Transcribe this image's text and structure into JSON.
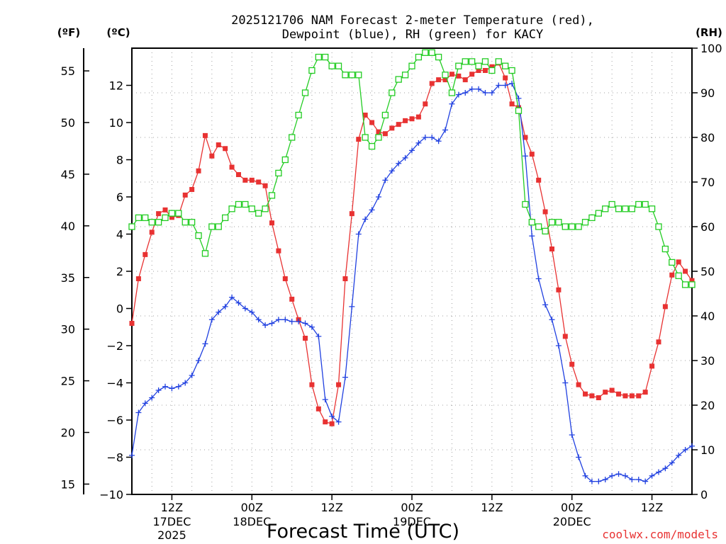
{
  "title_line1": "2025121706 NAM Forecast 2-meter Temperature (red),",
  "title_line2": "Dewpoint (blue), RH (green) for KACY",
  "unit_f": "(ºF)",
  "unit_c": "(ºC)",
  "unit_rh": "(RH)",
  "xlabel": "Forecast Time (UTC)",
  "watermark": "coolwx.com/models",
  "colors": {
    "temperature": "#e83232",
    "dewpoint": "#2040e0",
    "rh": "#22cc22",
    "grid": "#a0a0a0"
  },
  "chart_data": {
    "type": "line",
    "x_unit": "forecast hour from 2025-12-17 06Z",
    "xlim": [
      0,
      84
    ],
    "ylim_c": [
      -10,
      14
    ],
    "ylim_f": [
      14,
      57.2
    ],
    "ylim_rh": [
      0,
      100
    ],
    "grid": true,
    "x_ticks": [
      {
        "x": 6,
        "l1": "12Z",
        "l2": "17DEC",
        "l3": "2025"
      },
      {
        "x": 18,
        "l1": "00Z",
        "l2": "18DEC",
        "l3": ""
      },
      {
        "x": 30,
        "l1": "12Z",
        "l2": "",
        "l3": ""
      },
      {
        "x": 42,
        "l1": "00Z",
        "l2": "19DEC",
        "l3": ""
      },
      {
        "x": 54,
        "l1": "12Z",
        "l2": "",
        "l3": ""
      },
      {
        "x": 66,
        "l1": "00Z",
        "l2": "20DEC",
        "l3": ""
      },
      {
        "x": 78,
        "l1": "12Z",
        "l2": "",
        "l3": ""
      }
    ],
    "y_ticks_c": [
      -10,
      -8,
      -6,
      -4,
      -2,
      0,
      2,
      4,
      6,
      8,
      10,
      12
    ],
    "y_ticks_f": [
      15,
      20,
      25,
      30,
      35,
      40,
      45,
      50,
      55
    ],
    "y_ticks_rh": [
      0,
      10,
      20,
      30,
      40,
      50,
      60,
      70,
      80,
      90,
      100
    ],
    "series": [
      {
        "name": "Temperature",
        "axis": "c",
        "marker": "square",
        "x": [
          0,
          1,
          2,
          3,
          4,
          5,
          6,
          7,
          8,
          9,
          10,
          11,
          12,
          13,
          14,
          15,
          16,
          17,
          18,
          19,
          20,
          21,
          22,
          23,
          24,
          25,
          26,
          27,
          28,
          29,
          30,
          31,
          32,
          33,
          34,
          35,
          36,
          37,
          38,
          39,
          40,
          41,
          42,
          43,
          44,
          45,
          46,
          47,
          48,
          49,
          50,
          51,
          52,
          53,
          54,
          55,
          56,
          57,
          58,
          59,
          60,
          61,
          62,
          63,
          64,
          65,
          66,
          67,
          68,
          69,
          70,
          71,
          72,
          73,
          74,
          75,
          76,
          77,
          78,
          79,
          80,
          81,
          82,
          83,
          84
        ],
        "values": [
          -0.8,
          1.6,
          2.9,
          4.1,
          5.1,
          5.3,
          4.9,
          5.0,
          6.1,
          6.4,
          7.4,
          9.3,
          8.2,
          8.8,
          8.6,
          7.6,
          7.2,
          6.9,
          6.9,
          6.8,
          6.6,
          4.6,
          3.1,
          1.6,
          0.5,
          -0.6,
          -1.6,
          -4.1,
          -5.4,
          -6.1,
          -6.2,
          -4.1,
          1.6,
          5.1,
          9.1,
          10.4,
          10.0,
          9.5,
          9.4,
          9.7,
          9.9,
          10.1,
          10.2,
          10.3,
          11.0,
          12.1,
          12.3,
          12.3,
          12.6,
          12.5,
          12.3,
          12.6,
          12.8,
          12.8,
          13.0,
          13.2,
          12.4,
          11.0,
          10.8,
          9.2,
          8.3,
          6.9,
          5.2,
          3.2,
          1.0,
          -1.5,
          -3.0,
          -4.1,
          -4.6,
          -4.7,
          -4.8,
          -4.5,
          -4.4,
          -4.6,
          -4.7,
          -4.7,
          -4.7,
          -4.5,
          -3.1,
          -1.8,
          0.1,
          1.8,
          2.5,
          2.0,
          1.5
        ]
      },
      {
        "name": "Dewpoint",
        "axis": "c",
        "marker": "plus",
        "x": [
          0,
          1,
          2,
          3,
          4,
          5,
          6,
          7,
          8,
          9,
          10,
          11,
          12,
          13,
          14,
          15,
          16,
          17,
          18,
          19,
          20,
          21,
          22,
          23,
          24,
          25,
          26,
          27,
          28,
          29,
          30,
          31,
          32,
          33,
          34,
          35,
          36,
          37,
          38,
          39,
          40,
          41,
          42,
          43,
          44,
          45,
          46,
          47,
          48,
          49,
          50,
          51,
          52,
          53,
          54,
          55,
          56,
          57,
          58,
          59,
          60,
          61,
          62,
          63,
          64,
          65,
          66,
          67,
          68,
          69,
          70,
          71,
          72,
          73,
          74,
          75,
          76,
          77,
          78,
          79,
          80,
          81,
          82,
          83,
          84
        ],
        "values": [
          -7.9,
          -5.6,
          -5.1,
          -4.8,
          -4.4,
          -4.2,
          -4.3,
          -4.2,
          -4.0,
          -3.6,
          -2.8,
          -1.9,
          -0.6,
          -0.2,
          0.1,
          0.6,
          0.3,
          0.0,
          -0.2,
          -0.6,
          -0.9,
          -0.8,
          -0.6,
          -0.6,
          -0.7,
          -0.7,
          -0.8,
          -1.0,
          -1.5,
          -4.9,
          -5.8,
          -6.1,
          -3.7,
          0.1,
          4.0,
          4.8,
          5.3,
          6.0,
          6.9,
          7.4,
          7.8,
          8.1,
          8.5,
          8.9,
          9.2,
          9.2,
          9.0,
          9.6,
          11.0,
          11.5,
          11.6,
          11.8,
          11.8,
          11.6,
          11.6,
          12.0,
          12.0,
          12.1,
          11.3,
          8.2,
          3.9,
          1.6,
          0.2,
          -0.6,
          -2.0,
          -4.0,
          -6.8,
          -8.0,
          -9.0,
          -9.3,
          -9.3,
          -9.2,
          -9.0,
          -8.9,
          -9.0,
          -9.2,
          -9.2,
          -9.3,
          -9.0,
          -8.8,
          -8.6,
          -8.3,
          -7.9,
          -7.6,
          -7.4
        ]
      },
      {
        "name": "RH",
        "axis": "rh",
        "marker": "open-square",
        "x": [
          0,
          1,
          2,
          3,
          4,
          5,
          6,
          7,
          8,
          9,
          10,
          11,
          12,
          13,
          14,
          15,
          16,
          17,
          18,
          19,
          20,
          21,
          22,
          23,
          24,
          25,
          26,
          27,
          28,
          29,
          30,
          31,
          32,
          33,
          34,
          35,
          36,
          37,
          38,
          39,
          40,
          41,
          42,
          43,
          44,
          45,
          46,
          47,
          48,
          49,
          50,
          51,
          52,
          53,
          54,
          55,
          56,
          57,
          58,
          59,
          60,
          61,
          62,
          63,
          64,
          65,
          66,
          67,
          68,
          69,
          70,
          71,
          72,
          73,
          74,
          75,
          76,
          77,
          78,
          79,
          80,
          81,
          82,
          83,
          84
        ],
        "values": [
          60,
          62,
          62,
          61,
          61,
          62,
          63,
          63,
          61,
          61,
          58,
          54,
          60,
          60,
          62,
          64,
          65,
          65,
          64,
          63,
          64,
          67,
          72,
          75,
          80,
          85,
          90,
          95,
          98,
          98,
          96,
          96,
          94,
          94,
          94,
          80,
          78,
          80,
          85,
          90,
          93,
          94,
          96,
          98,
          99,
          99,
          98,
          94,
          90,
          96,
          97,
          97,
          96,
          97,
          95,
          97,
          96,
          95,
          86,
          65,
          61,
          60,
          59,
          61,
          61,
          60,
          60,
          60,
          61,
          62,
          63,
          64,
          65,
          64,
          64,
          64,
          65,
          65,
          64,
          60,
          55,
          52,
          49,
          47,
          47
        ]
      }
    ]
  }
}
